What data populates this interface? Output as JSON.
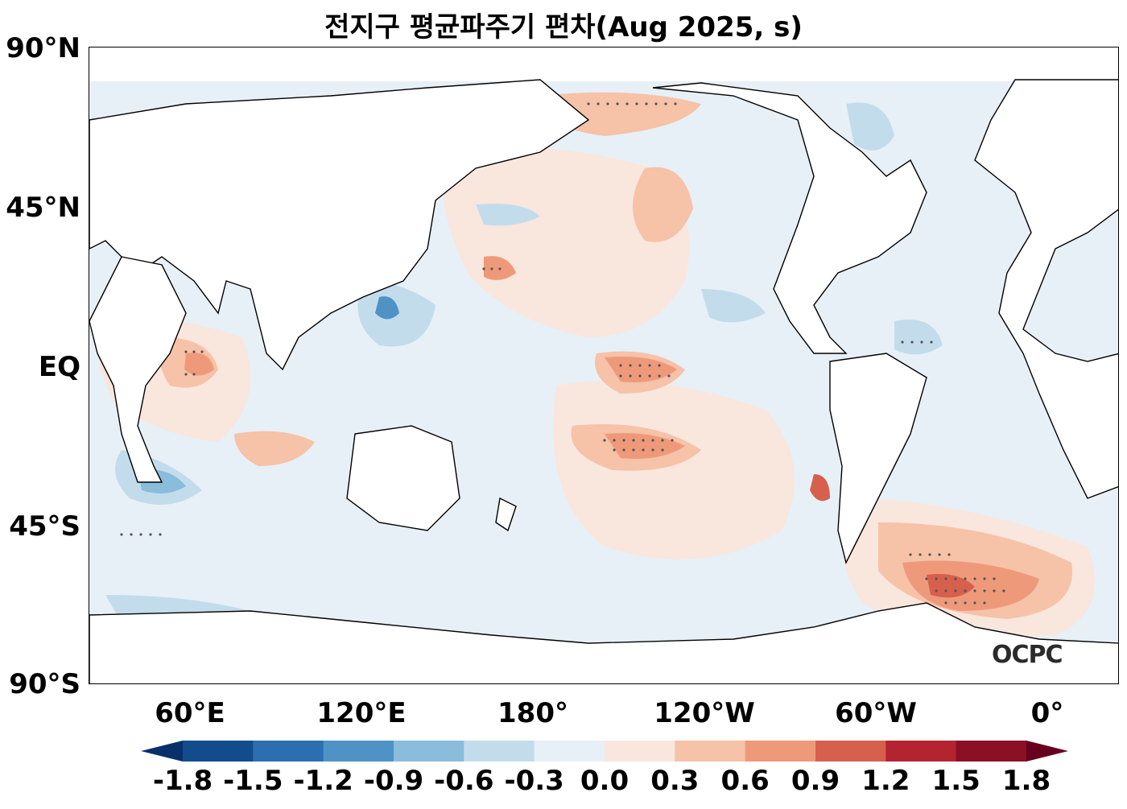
{
  "title": "전지구 평균파주기 편차(Aug 2025, s)",
  "y_labels": [
    "90°N",
    "45°N",
    "EQ",
    "45°S",
    "90°S"
  ],
  "x_labels": [
    "60°E",
    "120°E",
    "180°",
    "120°W",
    "60°W",
    "0°"
  ],
  "colorbar": {
    "ticks": [
      "-1.8",
      "-1.5",
      "-1.2",
      "-0.9",
      "-0.6",
      "-0.3",
      "0.0",
      "0.3",
      "0.6",
      "0.9",
      "1.2",
      "1.5",
      "1.8"
    ],
    "colors": [
      "#08306b",
      "#134c8d",
      "#2c6fb0",
      "#4f93c6",
      "#8abcdc",
      "#c3dcec",
      "#e7f0f6",
      "#f9e6dd",
      "#f6c2a8",
      "#ee9a7a",
      "#d6604d",
      "#b42330",
      "#8b0f25",
      "#67001f"
    ]
  },
  "logo": "OCPC"
}
